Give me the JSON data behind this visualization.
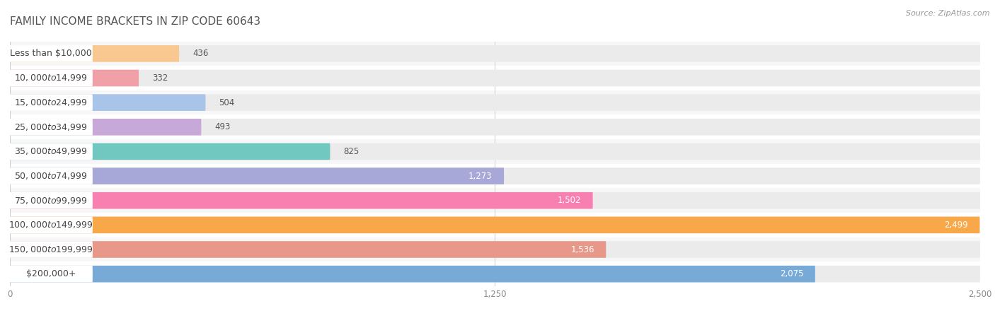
{
  "title": "FAMILY INCOME BRACKETS IN ZIP CODE 60643",
  "source": "Source: ZipAtlas.com",
  "categories": [
    "Less than $10,000",
    "$10,000 to $14,999",
    "$15,000 to $24,999",
    "$25,000 to $34,999",
    "$35,000 to $49,999",
    "$50,000 to $74,999",
    "$75,000 to $99,999",
    "$100,000 to $149,999",
    "$150,000 to $199,999",
    "$200,000+"
  ],
  "values": [
    436,
    332,
    504,
    493,
    825,
    1273,
    1502,
    2499,
    1536,
    2075
  ],
  "bar_colors": [
    "#F9C890",
    "#F2A0A8",
    "#A8C4E8",
    "#C8A8D8",
    "#70C8C0",
    "#A8A8D8",
    "#F880B0",
    "#F8A848",
    "#E89888",
    "#78AAD8"
  ],
  "background_color": "#ffffff",
  "bar_background_color": "#ebebeb",
  "row_background_even": "#f7f7f7",
  "row_background_odd": "#ffffff",
  "xlim": [
    0,
    2500
  ],
  "xticks": [
    0,
    1250,
    2500
  ],
  "title_fontsize": 11,
  "label_fontsize": 9,
  "value_fontsize": 8.5,
  "source_fontsize": 8
}
